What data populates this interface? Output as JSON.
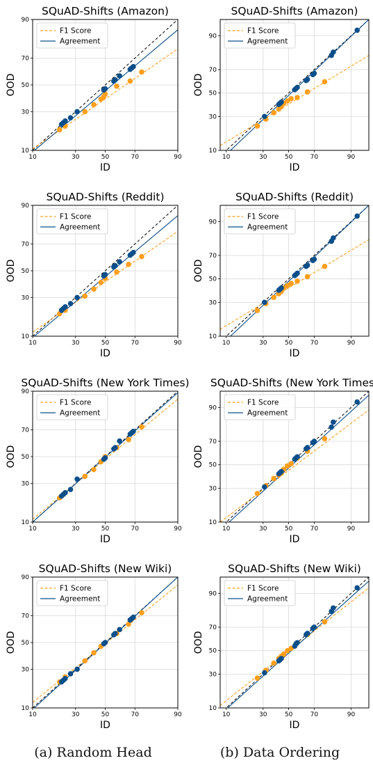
{
  "captions": {
    "a": "(a) Random Head",
    "b": "(b) Data Ordering"
  },
  "colors": {
    "f1": "#ff9f1c",
    "agreement": "#0b4f8a",
    "diagonal": "#000000",
    "grid": "#d9d9d9"
  },
  "chart_data": [
    {
      "type": "scatter",
      "title": "SQuAD-Shifts (Amazon)",
      "xlabel": "ID",
      "ylabel": "OOD",
      "axis_scale": "probit",
      "xlim": [
        10,
        90
      ],
      "ylim": [
        10,
        90
      ],
      "xticks": [
        10,
        30,
        50,
        70,
        90
      ],
      "yticks": [
        10,
        30,
        50,
        70,
        90
      ],
      "legend": "top-left",
      "grid": true,
      "series": [
        {
          "name": "F1 Score",
          "x": [
            21,
            24,
            36,
            42,
            47,
            49,
            50,
            58,
            67,
            74
          ],
          "y": [
            19,
            21,
            30,
            35,
            39,
            41,
            43,
            49,
            53,
            60
          ]
        },
        {
          "name": "Agreement",
          "x": [
            22,
            23,
            24,
            27,
            31,
            49,
            50,
            56,
            57,
            60,
            67,
            68,
            69
          ],
          "y": [
            22,
            23,
            24,
            26,
            30,
            46,
            47,
            53,
            54,
            57,
            62,
            63,
            64
          ]
        }
      ],
      "fit_lines": [
        {
          "name": "F1 Score",
          "points": [
            [
              10,
              10.5
            ],
            [
              90,
              76
            ]
          ]
        },
        {
          "name": "Agreement",
          "points": [
            [
              10,
              9.5
            ],
            [
              90,
              86
            ]
          ]
        }
      ]
    },
    {
      "type": "scatter",
      "title": "SQuAD-Shifts (Amazon)",
      "xlabel": "ID",
      "ylabel": "OOD",
      "axis_scale": "probit",
      "xlim": [
        8,
        95
      ],
      "ylim": [
        10,
        95
      ],
      "xticks": [
        10,
        30,
        50,
        70,
        90
      ],
      "yticks": [
        10,
        30,
        50,
        70,
        90
      ],
      "legend": "top-left",
      "grid": true,
      "series": [
        {
          "name": "F1 Score",
          "x": [
            26,
            32,
            38,
            42,
            44,
            46,
            49,
            52,
            57,
            65,
            77
          ],
          "y": [
            23,
            28,
            33,
            36,
            38,
            41,
            43,
            45,
            46,
            51,
            60
          ]
        },
        {
          "name": "Agreement",
          "x": [
            31,
            42,
            43,
            44,
            55,
            56,
            57,
            64,
            65,
            69,
            70,
            81,
            82,
            92
          ],
          "y": [
            30,
            40,
            41,
            42,
            53,
            54,
            55,
            61,
            62,
            66,
            67,
            80,
            82,
            92
          ]
        }
      ],
      "fit_lines": [
        {
          "name": "F1 Score",
          "points": [
            [
              8,
              12
            ],
            [
              95,
              80
            ]
          ]
        },
        {
          "name": "Agreement",
          "points": [
            [
              10,
              8.5
            ],
            [
              95,
              95
            ]
          ]
        }
      ]
    },
    {
      "type": "scatter",
      "title": "SQuAD-Shifts (Reddit)",
      "xlabel": "ID",
      "ylabel": "OOD",
      "axis_scale": "probit",
      "xlim": [
        10,
        90
      ],
      "ylim": [
        10,
        90
      ],
      "xticks": [
        10,
        30,
        50,
        70,
        90
      ],
      "yticks": [
        10,
        30,
        50,
        70,
        90
      ],
      "legend": "top-left",
      "grid": true,
      "series": [
        {
          "name": "F1 Score",
          "x": [
            21,
            24,
            36,
            42,
            47,
            50,
            58,
            66,
            74
          ],
          "y": [
            20,
            22,
            31,
            36,
            41,
            44,
            49,
            55,
            61
          ]
        },
        {
          "name": "Agreement",
          "x": [
            22,
            23,
            24,
            27,
            31,
            49,
            50,
            56,
            57,
            60,
            67,
            68,
            69
          ],
          "y": [
            22,
            23,
            24,
            26,
            30,
            46,
            47,
            53,
            54,
            57,
            62,
            63,
            64
          ]
        }
      ],
      "fit_lines": [
        {
          "name": "F1 Score",
          "points": [
            [
              10,
              11.5
            ],
            [
              90,
              78
            ]
          ]
        },
        {
          "name": "Agreement",
          "points": [
            [
              10,
              9.5
            ],
            [
              90,
              86
            ]
          ]
        }
      ]
    },
    {
      "type": "scatter",
      "title": "SQuAD-Shifts (Reddit)",
      "xlabel": "ID",
      "ylabel": "OOD",
      "axis_scale": "probit",
      "xlim": [
        8,
        95
      ],
      "ylim": [
        10,
        95
      ],
      "xticks": [
        10,
        30,
        50,
        70,
        90
      ],
      "yticks": [
        10,
        30,
        50,
        70,
        90
      ],
      "legend": "top-left",
      "grid": true,
      "series": [
        {
          "name": "F1 Score",
          "x": [
            26,
            32,
            38,
            42,
            44,
            46,
            49,
            52,
            57,
            65,
            77
          ],
          "y": [
            24,
            29,
            34,
            37,
            39,
            42,
            44,
            46,
            48,
            52,
            61
          ]
        },
        {
          "name": "Agreement",
          "x": [
            31,
            42,
            43,
            44,
            55,
            56,
            57,
            64,
            65,
            69,
            70,
            81,
            82,
            92
          ],
          "y": [
            30,
            40,
            41,
            42,
            53,
            54,
            55,
            61,
            62,
            66,
            67,
            80,
            82,
            92
          ]
        }
      ],
      "fit_lines": [
        {
          "name": "F1 Score",
          "points": [
            [
              8,
              13
            ],
            [
              95,
              81
            ]
          ]
        },
        {
          "name": "Agreement",
          "points": [
            [
              10,
              8.5
            ],
            [
              95,
              95
            ]
          ]
        }
      ]
    },
    {
      "type": "scatter",
      "title": "SQuAD-Shifts (New York Times)",
      "xlabel": "ID",
      "ylabel": "OOD",
      "axis_scale": "probit",
      "xlim": [
        10,
        90
      ],
      "ylim": [
        10,
        90
      ],
      "xticks": [
        10,
        30,
        50,
        70,
        90
      ],
      "yticks": [
        10,
        30,
        50,
        70,
        90
      ],
      "legend": "top-left",
      "grid": true,
      "series": [
        {
          "name": "F1 Score",
          "x": [
            21,
            24,
            36,
            42,
            47,
            50,
            58,
            66,
            74
          ],
          "y": [
            21,
            24,
            35,
            40,
            46,
            50,
            57,
            63,
            72
          ]
        },
        {
          "name": "Agreement",
          "x": [
            22,
            23,
            24,
            27,
            31,
            49,
            50,
            56,
            57,
            60,
            67,
            68,
            69
          ],
          "y": [
            22,
            23,
            24,
            26,
            33,
            48,
            49,
            56,
            57,
            62,
            67,
            68,
            69
          ]
        }
      ],
      "fit_lines": [
        {
          "name": "F1 Score",
          "points": [
            [
              10,
              11
            ],
            [
              90,
              87
            ]
          ]
        },
        {
          "name": "Agreement",
          "points": [
            [
              10,
              10
            ],
            [
              90,
              89.5
            ]
          ]
        }
      ]
    },
    {
      "type": "scatter",
      "title": "SQuAD-Shifts (New York Times)",
      "xlabel": "ID",
      "ylabel": "OOD",
      "axis_scale": "probit",
      "xlim": [
        8,
        95
      ],
      "ylim": [
        10,
        95
      ],
      "xticks": [
        10,
        30,
        50,
        70,
        90
      ],
      "yticks": [
        10,
        30,
        50,
        70,
        90
      ],
      "legend": "top-left",
      "grid": true,
      "series": [
        {
          "name": "F1 Score",
          "x": [
            26,
            32,
            38,
            42,
            44,
            46,
            49,
            52,
            57,
            65,
            77
          ],
          "y": [
            26,
            32,
            38,
            41,
            43,
            46,
            49,
            51,
            56,
            62,
            72
          ]
        },
        {
          "name": "Agreement",
          "x": [
            31,
            42,
            43,
            44,
            55,
            56,
            57,
            64,
            65,
            69,
            70,
            81,
            82,
            92
          ],
          "y": [
            31,
            42,
            43,
            44,
            55,
            56,
            57,
            64,
            65,
            69,
            70,
            80,
            83,
            92
          ]
        }
      ],
      "fit_lines": [
        {
          "name": "F1 Score",
          "points": [
            [
              8,
              10
            ],
            [
              95,
              89
            ]
          ]
        },
        {
          "name": "Agreement",
          "points": [
            [
              10,
              9
            ],
            [
              95,
              94
            ]
          ]
        }
      ]
    },
    {
      "type": "scatter",
      "title": "SQuAD-Shifts (New Wiki)",
      "xlabel": "ID",
      "ylabel": "OOD",
      "axis_scale": "probit",
      "xlim": [
        10,
        90
      ],
      "ylim": [
        10,
        90
      ],
      "xticks": [
        10,
        30,
        50,
        70,
        90
      ],
      "yticks": [
        10,
        30,
        50,
        70,
        90
      ],
      "legend": "top-left",
      "grid": true,
      "series": [
        {
          "name": "F1 Score",
          "x": [
            21,
            24,
            36,
            42,
            47,
            50,
            58,
            66,
            74
          ],
          "y": [
            22,
            25,
            36,
            42,
            47,
            50,
            57,
            64,
            72
          ]
        },
        {
          "name": "Agreement",
          "x": [
            22,
            23,
            24,
            27,
            31,
            49,
            50,
            56,
            57,
            60,
            67,
            68,
            69
          ],
          "y": [
            22,
            23,
            24,
            27,
            30,
            49,
            50,
            56,
            57,
            60,
            67,
            68,
            69
          ]
        }
      ],
      "fit_lines": [
        {
          "name": "F1 Score",
          "points": [
            [
              10,
              12
            ],
            [
              90,
              87
            ]
          ]
        },
        {
          "name": "Agreement",
          "points": [
            [
              10,
              9.5
            ],
            [
              90,
              90
            ]
          ]
        }
      ]
    },
    {
      "type": "scatter",
      "title": "SQuAD-Shifts (New Wiki)",
      "xlabel": "ID",
      "ylabel": "OOD",
      "axis_scale": "probit",
      "xlim": [
        8,
        95
      ],
      "ylim": [
        10,
        95
      ],
      "xticks": [
        10,
        30,
        50,
        70,
        90
      ],
      "yticks": [
        10,
        30,
        50,
        70,
        90
      ],
      "legend": "top-left",
      "grid": true,
      "series": [
        {
          "name": "F1 Score",
          "x": [
            26,
            32,
            38,
            42,
            44,
            46,
            49,
            52,
            57,
            65,
            77
          ],
          "y": [
            27,
            33,
            39,
            43,
            45,
            47,
            50,
            52,
            57,
            64,
            74
          ]
        },
        {
          "name": "Agreement",
          "x": [
            31,
            42,
            43,
            44,
            55,
            56,
            57,
            64,
            65,
            69,
            70,
            81,
            82,
            92
          ],
          "y": [
            31,
            41,
            42,
            43,
            54,
            56,
            57,
            64,
            65,
            69,
            70,
            81,
            83,
            92
          ]
        }
      ],
      "fit_lines": [
        {
          "name": "F1 Score",
          "points": [
            [
              8,
              11
            ],
            [
              95,
              92
            ]
          ]
        },
        {
          "name": "Agreement",
          "points": [
            [
              10,
              9.5
            ],
            [
              95,
              94
            ]
          ]
        }
      ]
    }
  ]
}
